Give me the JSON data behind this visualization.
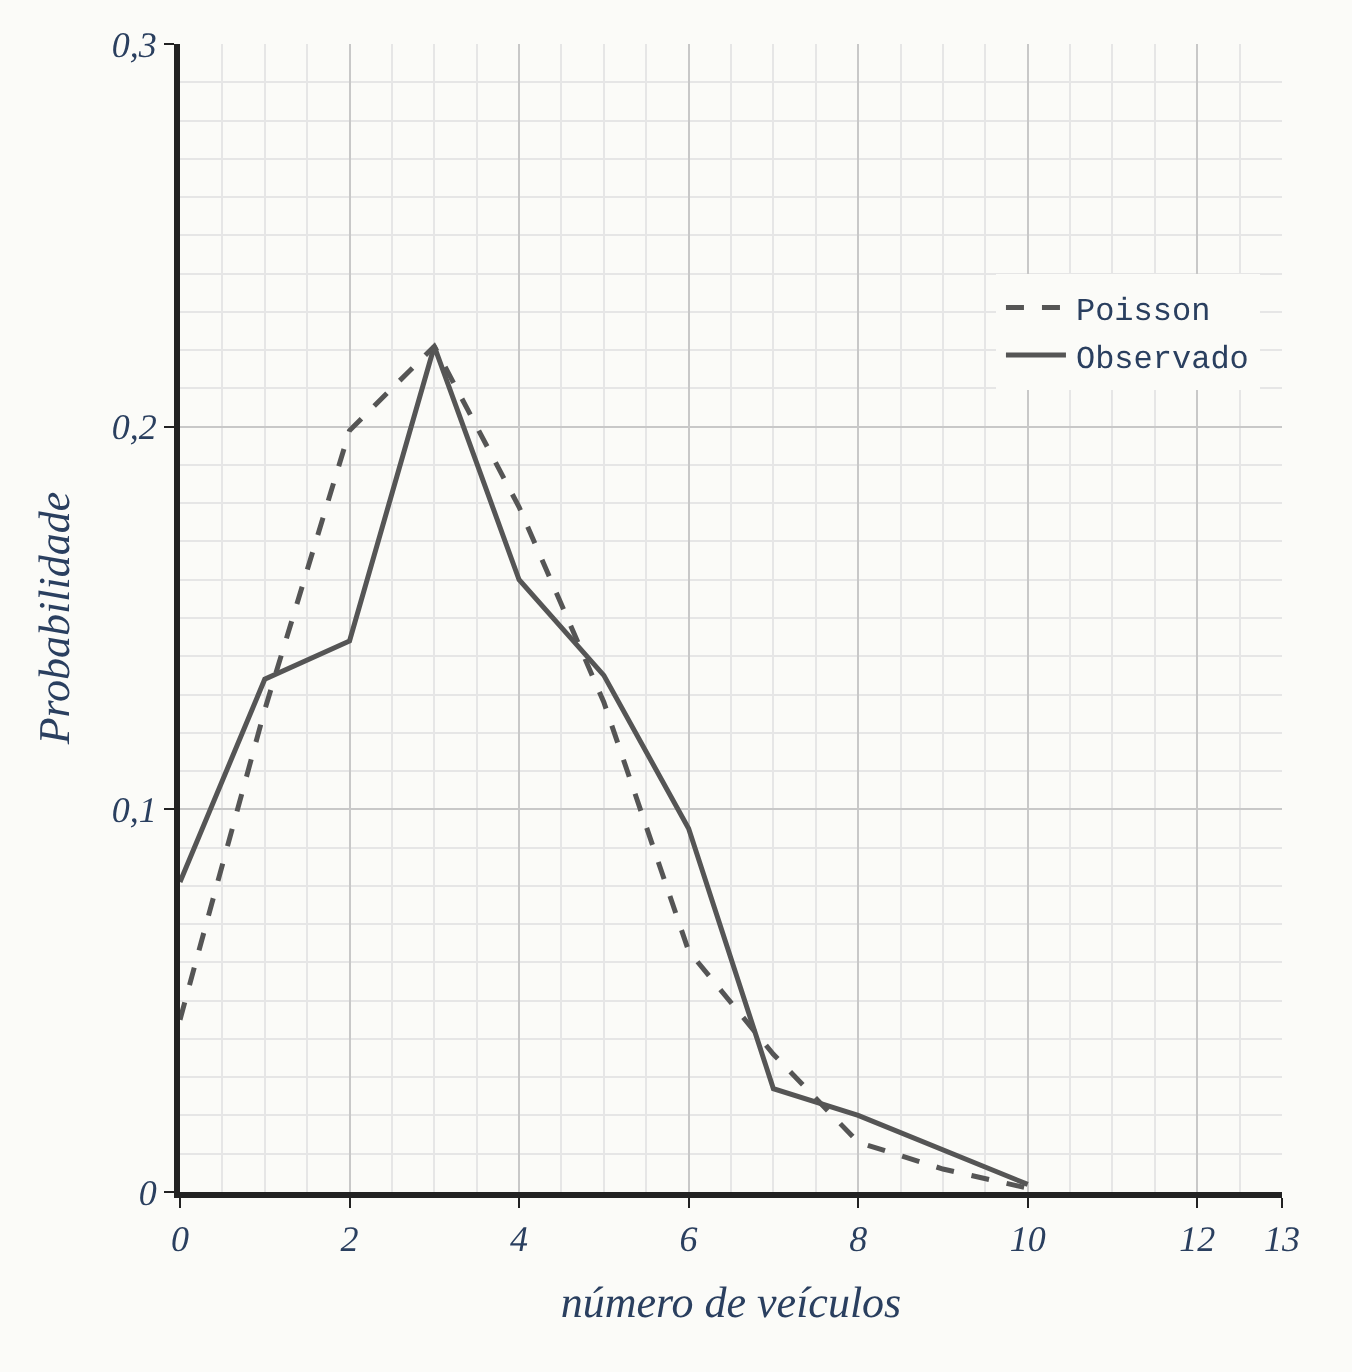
{
  "chart_data": {
    "type": "line",
    "xlabel": "número de veículos",
    "ylabel": "Probabilidade",
    "xlim": [
      0,
      13
    ],
    "xticks": [
      0,
      2,
      4,
      6,
      8,
      10,
      12,
      13
    ],
    "ylim": [
      0,
      0.3
    ],
    "yticks": [
      0,
      {
        "value": 0.1,
        "label": "0,1"
      },
      {
        "value": 0.2,
        "label": "0,2"
      },
      {
        "value": 0.3,
        "label": "0,3"
      }
    ],
    "grid": true,
    "legend": "top right",
    "marker": "none",
    "series": [
      {
        "name": "Poisson",
        "color": "#555555",
        "line_style": "dashed",
        "x": [
          0,
          1,
          2,
          3,
          4,
          5,
          6,
          7,
          8,
          9,
          10
        ],
        "values": [
          0.045,
          0.126,
          0.199,
          0.221,
          0.179,
          0.128,
          0.063,
          0.036,
          0.013,
          0.006,
          0.001
        ]
      },
      {
        "name": "Observado",
        "color": "#555555",
        "line_style": "solid",
        "x": [
          0,
          1,
          2,
          3,
          4,
          5,
          6,
          7,
          8,
          10
        ],
        "values": [
          0.081,
          0.134,
          0.144,
          0.221,
          0.16,
          0.135,
          0.095,
          0.027,
          0.02,
          0.002
        ]
      }
    ]
  }
}
